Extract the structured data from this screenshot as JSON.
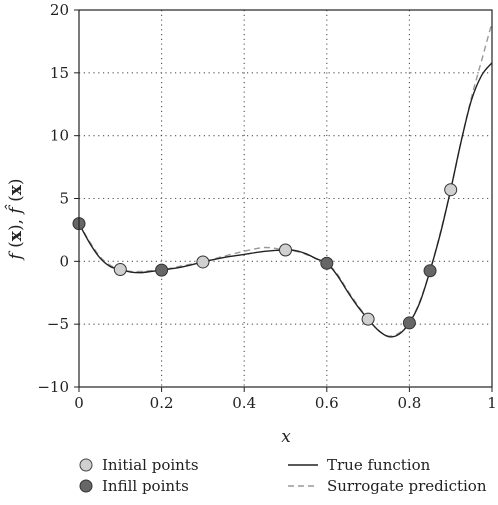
{
  "chart_data": {
    "type": "scatter",
    "xlabel": "x",
    "ylabel": "f (x), f̂ (x)",
    "xlim": [
      0,
      1
    ],
    "ylim": [
      -10,
      20
    ],
    "xticks": [
      "0",
      "0.2",
      "0.4",
      "0.6",
      "0.8",
      "1"
    ],
    "xtick_values": [
      0,
      0.2,
      0.4,
      0.6,
      0.8,
      1.0
    ],
    "yticks": [
      "−10",
      "−5",
      "0",
      "5",
      "10",
      "15",
      "20"
    ],
    "ytick_values": [
      -10,
      -5,
      0,
      5,
      10,
      15,
      20
    ],
    "grid": "dotted",
    "legend_position": "bottom",
    "series": [
      {
        "name": "Initial points",
        "kind": "marker",
        "color": "#d0d0d0",
        "x": [
          0.1,
          0.3,
          0.5,
          0.7,
          0.9
        ],
        "y": [
          -0.65,
          -0.05,
          0.9,
          -4.6,
          5.7
        ]
      },
      {
        "name": "Infill points",
        "kind": "marker",
        "color": "#666666",
        "x": [
          0.0,
          0.2,
          0.6,
          0.8,
          0.85
        ],
        "y": [
          3.0,
          -0.7,
          -0.15,
          -4.9,
          -0.75
        ]
      },
      {
        "name": "True function",
        "kind": "line",
        "color": "#222222",
        "x": [
          0,
          0.025,
          0.05,
          0.075,
          0.1,
          0.125,
          0.15,
          0.175,
          0.2,
          0.25,
          0.3,
          0.35,
          0.4,
          0.45,
          0.5,
          0.525,
          0.55,
          0.575,
          0.6,
          0.625,
          0.65,
          0.675,
          0.7,
          0.725,
          0.75,
          0.775,
          0.8,
          0.825,
          0.85,
          0.875,
          0.9,
          0.925,
          0.95,
          0.975,
          1.0
        ],
        "y": [
          3.0,
          1.5,
          0.3,
          -0.4,
          -0.65,
          -0.85,
          -0.9,
          -0.8,
          -0.7,
          -0.45,
          -0.05,
          0.3,
          0.55,
          0.8,
          0.9,
          0.85,
          0.6,
          0.2,
          -0.15,
          -1.1,
          -2.4,
          -3.6,
          -4.6,
          -5.5,
          -6.0,
          -5.8,
          -4.9,
          -3.3,
          -0.75,
          2.2,
          5.7,
          9.5,
          12.8,
          14.8,
          15.8
        ]
      },
      {
        "name": "Surrogate prediction",
        "kind": "dashed-line",
        "color": "#999999",
        "x": [
          0,
          0.025,
          0.05,
          0.075,
          0.1,
          0.125,
          0.15,
          0.175,
          0.2,
          0.25,
          0.3,
          0.35,
          0.4,
          0.45,
          0.5,
          0.525,
          0.55,
          0.575,
          0.6,
          0.625,
          0.65,
          0.675,
          0.7,
          0.725,
          0.75,
          0.775,
          0.8,
          0.825,
          0.85,
          0.875,
          0.9,
          0.925,
          0.95,
          0.975,
          1.0
        ],
        "y": [
          3.0,
          1.6,
          0.4,
          -0.3,
          -0.65,
          -0.8,
          -0.8,
          -0.75,
          -0.7,
          -0.35,
          -0.05,
          0.4,
          0.8,
          1.1,
          0.9,
          0.8,
          0.55,
          0.2,
          -0.15,
          -1.0,
          -2.3,
          -3.5,
          -4.6,
          -5.5,
          -5.95,
          -5.7,
          -4.9,
          -3.2,
          -0.75,
          2.3,
          5.7,
          9.5,
          13.0,
          16.0,
          19.0
        ]
      }
    ]
  }
}
